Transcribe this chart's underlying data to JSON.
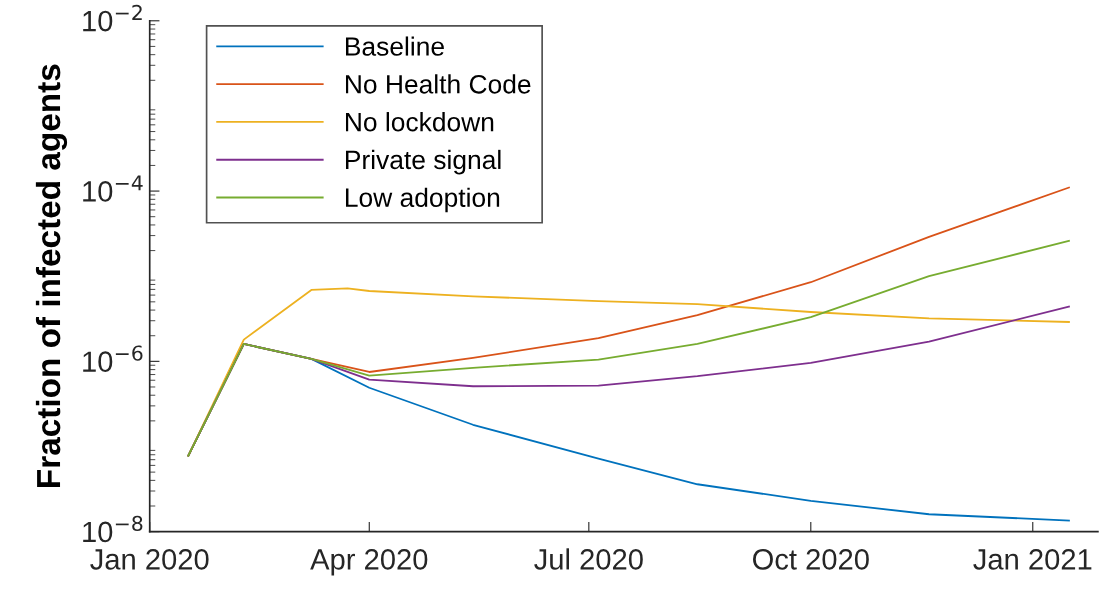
{
  "chart_data": {
    "type": "line",
    "ylabel": "Fraction of infected agents",
    "log": "y",
    "legend": "top left",
    "grid": false,
    "marker": "none",
    "line_style": "solid",
    "x": [
      "2020-01-17",
      "2020-02-09",
      "2020-03-08",
      "2020-04-01",
      "2020-05-14",
      "2020-07-05",
      "2020-08-15",
      "2020-10-01",
      "2020-11-19",
      "2021-01-16"
    ],
    "xlim": [
      "2020-01-01",
      "2021-01-28"
    ],
    "xticks": [
      {
        "value": "2020-01-01",
        "label": "Jan 2020"
      },
      {
        "value": "2020-04-01",
        "label": "Apr 2020"
      },
      {
        "value": "2020-07-01",
        "label": "Jul 2020"
      },
      {
        "value": "2020-10-01",
        "label": "Oct 2020"
      },
      {
        "value": "2021-01-01",
        "label": "Jan 2021"
      }
    ],
    "ylim": [
      1e-08,
      0.01
    ],
    "yticks": [
      {
        "value": 1e-08,
        "label": "10$^{−8}$"
      },
      {
        "value": 1e-06,
        "label": "10$^{−6}$"
      },
      {
        "value": 0.0001,
        "label": "10$^{−4}$"
      },
      {
        "value": 0.01,
        "label": "10$^{−2}$"
      }
    ],
    "series": [
      {
        "name": "Baseline",
        "color": "#0072bd",
        "values": [
          7.8e-08,
          1.6e-06,
          1.07e-06,
          4.9e-07,
          1.8e-07,
          7.2e-08,
          3.6e-08,
          2.3e-08,
          1.6e-08,
          1.35e-08
        ]
      },
      {
        "name": "No Health Code",
        "color": "#d95319",
        "values": [
          7.8e-08,
          1.6e-06,
          1.07e-06,
          7.5e-07,
          1.1e-06,
          1.87e-06,
          3.5e-06,
          8.5e-06,
          2.9e-05,
          0.00011
        ]
      },
      {
        "name": "No lockdown",
        "color": "#edb120",
        "x": [
          "2020-01-17",
          "2020-02-09",
          "2020-03-08",
          "2020-03-23",
          "2020-04-01",
          "2020-05-14",
          "2020-07-05",
          "2020-08-15",
          "2020-10-01",
          "2020-11-19",
          "2021-01-16"
        ],
        "values": [
          7.8e-08,
          1.8e-06,
          6.9e-06,
          7.2e-06,
          6.7e-06,
          5.8e-06,
          5.1e-06,
          4.7e-06,
          3.8e-06,
          3.2e-06,
          2.9e-06
        ]
      },
      {
        "name": "Private signal",
        "color": "#7e2f8e",
        "values": [
          7.8e-08,
          1.6e-06,
          1.07e-06,
          6.1e-07,
          5.1e-07,
          5.2e-07,
          6.7e-07,
          9.6e-07,
          1.7e-06,
          4.4e-06
        ]
      },
      {
        "name": "Low adoption",
        "color": "#77ac30",
        "values": [
          7.8e-08,
          1.6e-06,
          1.07e-06,
          6.8e-07,
          8.4e-07,
          1.05e-06,
          1.6e-06,
          3.3e-06,
          1e-05,
          2.6e-05
        ]
      }
    ]
  }
}
